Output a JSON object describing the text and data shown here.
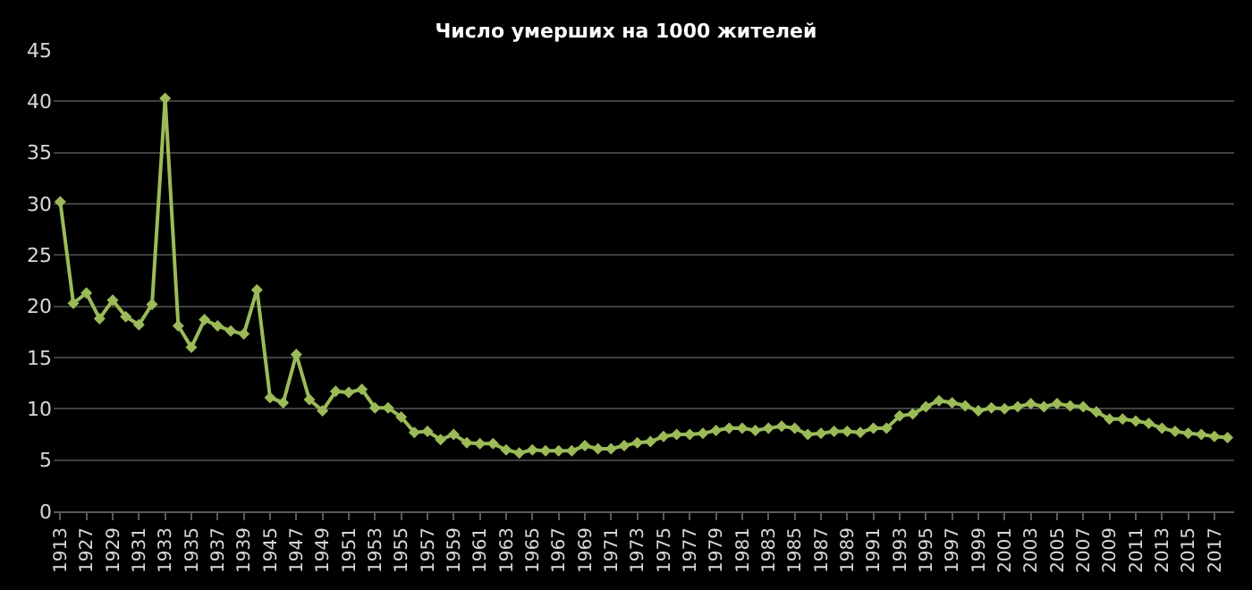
{
  "chart_data": {
    "type": "line",
    "title": "Число умерших на 1000 жителей",
    "categories": [
      "1913",
      null,
      "1927",
      null,
      "1929",
      null,
      "1931",
      null,
      "1933",
      null,
      "1935",
      null,
      "1937",
      null,
      "1939",
      null,
      "1945",
      null,
      "1947",
      null,
      "1949",
      null,
      "1951",
      null,
      "1953",
      null,
      "1955",
      null,
      "1957",
      null,
      "1959",
      null,
      "1961",
      null,
      "1963",
      null,
      "1965",
      null,
      "1967",
      null,
      "1969",
      null,
      "1971",
      null,
      "1973",
      null,
      "1975",
      null,
      "1977",
      null,
      "1979",
      null,
      "1981",
      null,
      "1983",
      null,
      "1985",
      null,
      "1987",
      null,
      "1989",
      null,
      "1991",
      null,
      "1993",
      null,
      "1995",
      null,
      "1997",
      null,
      "1999",
      null,
      "2001",
      null,
      "2003",
      null,
      "2005",
      null,
      "2007",
      null,
      "2009",
      null,
      "2011",
      null,
      "2013",
      null,
      "2015",
      null,
      "2017",
      null
    ],
    "series": [
      {
        "color": "#9bbb59",
        "values": [
          30.2,
          20.3,
          21.3,
          18.8,
          20.6,
          19.0,
          18.2,
          20.2,
          40.3,
          18.1,
          16.0,
          18.7,
          18.1,
          17.6,
          17.3,
          21.6,
          11.1,
          10.6,
          15.3,
          10.9,
          9.8,
          11.7,
          11.6,
          11.9,
          10.1,
          10.1,
          9.2,
          7.7,
          7.8,
          7.0,
          7.5,
          6.7,
          6.6,
          6.6,
          6.0,
          5.7,
          6.0,
          5.9,
          5.9,
          5.9,
          6.4,
          6.1,
          6.1,
          6.4,
          6.7,
          6.8,
          7.3,
          7.5,
          7.5,
          7.6,
          7.9,
          8.1,
          8.1,
          7.9,
          8.1,
          8.3,
          8.1,
          7.5,
          7.6,
          7.8,
          7.8,
          7.7,
          8.1,
          8.1,
          9.3,
          9.5,
          10.2,
          10.8,
          10.6,
          10.3,
          9.8,
          10.1,
          10.0,
          10.2,
          10.5,
          10.2,
          10.5,
          10.3,
          10.2,
          9.7,
          9.0,
          9.0,
          8.8,
          8.6,
          8.1,
          7.8,
          7.6,
          7.5,
          7.3,
          7.2
        ]
      }
    ],
    "ylim": [
      0,
      45
    ],
    "yticks": [
      0,
      5,
      10,
      15,
      20,
      25,
      30,
      35,
      40,
      45
    ],
    "grid": "y",
    "marker": "diamond",
    "line_style": "solid"
  }
}
